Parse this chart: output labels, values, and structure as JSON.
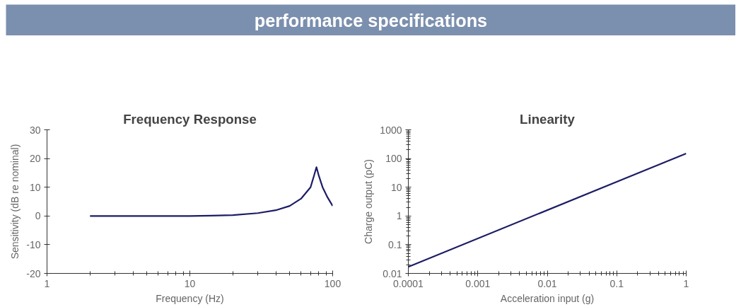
{
  "chart_data": [
    {
      "type": "other",
      "title": "performance specifications"
    },
    {
      "type": "line",
      "title": "Frequency Response",
      "xlabel": "Frequency (Hz)",
      "ylabel": "Sensitivity (dB re nominal)",
      "log": "x",
      "marker": "none",
      "line_style": "solid",
      "x": [
        2,
        5,
        10,
        14,
        20,
        30,
        40,
        50,
        60,
        70,
        74,
        77,
        80,
        85,
        92,
        100
      ],
      "series": [
        {
          "color": "#1c1c66",
          "values": [
            0,
            0,
            0,
            0.1,
            0.3,
            1,
            2,
            3.5,
            6,
            10,
            14,
            17,
            14,
            10,
            6.5,
            3.5
          ]
        }
      ],
      "xlim": [
        1,
        100
      ],
      "xticks": [
        1,
        10,
        100
      ],
      "ylim": [
        -20,
        30
      ],
      "yticks": [
        -20,
        -10,
        0,
        10,
        20,
        30
      ]
    },
    {
      "type": "line",
      "title": "Linearity",
      "xlabel": "Acceleration input (g)",
      "ylabel": "Charge output (pC)",
      "log": "xy",
      "marker": "none",
      "line_style": "solid",
      "x": [
        0.0001,
        1
      ],
      "series": [
        {
          "color": "#1c1c66",
          "values": [
            0.017,
            150
          ]
        }
      ],
      "xlim": [
        0.0001,
        1
      ],
      "xticks": [
        0.0001,
        0.001,
        0.01,
        0.1,
        1
      ],
      "ylim": [
        0.01,
        1000
      ],
      "yticks": [
        0.01,
        0.1,
        1,
        10,
        100,
        1000
      ]
    }
  ]
}
